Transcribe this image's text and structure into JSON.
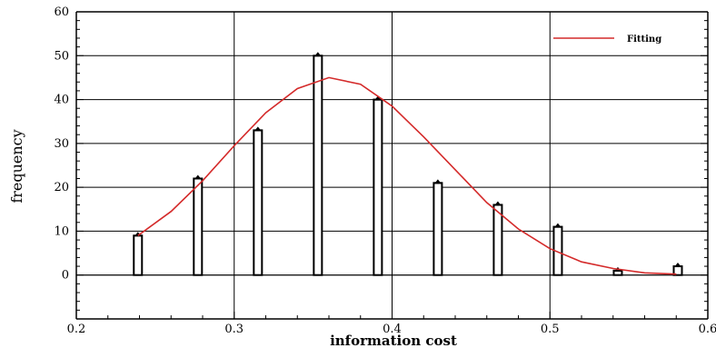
{
  "chart_data": {
    "type": "bar",
    "xlabel": "information cost",
    "ylabel": "frequency",
    "xlim": [
      0.2,
      0.6
    ],
    "ylim": [
      -10,
      60
    ],
    "x_ticks": [
      0.2,
      0.3,
      0.4,
      0.5,
      0.6
    ],
    "x_tick_labels": [
      "0.2",
      "0.3",
      "0.4",
      "0.5",
      "0.6"
    ],
    "y_ticks": [
      0,
      10,
      20,
      30,
      40,
      50,
      60
    ],
    "y_tick_labels": [
      "0",
      "10",
      "20",
      "30",
      "40",
      "50",
      "60"
    ],
    "grid": true,
    "legend_position": "top-right",
    "bars": {
      "x": [
        0.239,
        0.277,
        0.315,
        0.353,
        0.391,
        0.429,
        0.467,
        0.505,
        0.543,
        0.581
      ],
      "values": [
        9,
        22,
        33,
        50,
        40,
        21,
        16,
        11,
        1,
        2
      ]
    },
    "series": [
      {
        "name": "Fitting",
        "type": "line",
        "color": "#d42a2a",
        "x": [
          0.239,
          0.26,
          0.28,
          0.3,
          0.32,
          0.34,
          0.36,
          0.38,
          0.4,
          0.42,
          0.44,
          0.46,
          0.48,
          0.5,
          0.52,
          0.54,
          0.56,
          0.58
        ],
        "y": [
          9,
          14.5,
          21.5,
          29.5,
          37,
          42.5,
          45,
          43.5,
          38.5,
          31.5,
          24,
          16.5,
          10.5,
          6,
          3,
          1.5,
          0.5,
          0.2
        ]
      }
    ]
  }
}
